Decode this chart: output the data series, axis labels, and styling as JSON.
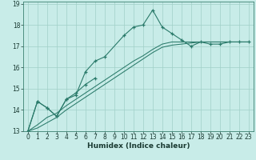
{
  "title": "",
  "xlabel": "Humidex (Indice chaleur)",
  "background_color": "#c8ece8",
  "grid_color": "#a0d0c8",
  "line_color": "#2a7a6a",
  "x_values": [
    0,
    1,
    2,
    3,
    4,
    5,
    6,
    7,
    8,
    9,
    10,
    11,
    12,
    13,
    14,
    15,
    16,
    17,
    18,
    19,
    20,
    21,
    22,
    23
  ],
  "line1": [
    13.0,
    14.4,
    14.1,
    13.7,
    14.5,
    14.7,
    15.8,
    16.3,
    16.5,
    17.5,
    17.9,
    18.0,
    18.7,
    17.9,
    17.6,
    17.3,
    17.0,
    17.2,
    17.1,
    17.1,
    17.2,
    17.2,
    17.2
  ],
  "line1_x": [
    0,
    1,
    2,
    3,
    4,
    5,
    6,
    7,
    8,
    10,
    11,
    12,
    13,
    14,
    15,
    16,
    17,
    18,
    19,
    20,
    21,
    22,
    23
  ],
  "line2": [
    13.0,
    14.4,
    14.1,
    13.7,
    14.5,
    14.8,
    15.2,
    15.5
  ],
  "line2_x": [
    0,
    1,
    2,
    3,
    4,
    5,
    6,
    7
  ],
  "line3": [
    13.0,
    13.3,
    13.65,
    13.85,
    14.2,
    14.5,
    14.8,
    15.1,
    15.4,
    15.7,
    16.0,
    16.3,
    16.55,
    16.85,
    17.1,
    17.2,
    17.2,
    17.2,
    17.2,
    17.2,
    17.2,
    17.2,
    17.2,
    17.2
  ],
  "line3_x": [
    0,
    1,
    2,
    3,
    4,
    5,
    6,
    7,
    8,
    9,
    10,
    11,
    12,
    13,
    14,
    15,
    16,
    17,
    18,
    19,
    20,
    21,
    22,
    23
  ],
  "line4": [
    13.0,
    13.15,
    13.4,
    13.65,
    14.0,
    14.3,
    14.6,
    14.9,
    15.2,
    15.5,
    15.8,
    16.1,
    16.4,
    16.7,
    16.95,
    17.05,
    17.1,
    17.15,
    17.2,
    17.2,
    17.2,
    17.2,
    17.2,
    17.2
  ],
  "line4_x": [
    0,
    1,
    2,
    3,
    4,
    5,
    6,
    7,
    8,
    9,
    10,
    11,
    12,
    13,
    14,
    15,
    16,
    17,
    18,
    19,
    20,
    21,
    22,
    23
  ],
  "ylim": [
    13,
    19
  ],
  "xlim": [
    -0.5,
    23.5
  ],
  "yticks": [
    13,
    14,
    15,
    16,
    17,
    18,
    19
  ],
  "xticks": [
    0,
    1,
    2,
    3,
    4,
    5,
    6,
    7,
    8,
    9,
    10,
    11,
    12,
    13,
    14,
    15,
    16,
    17,
    18,
    19,
    20,
    21,
    22,
    23
  ],
  "tick_fontsize": 5.5,
  "xlabel_fontsize": 6.5
}
